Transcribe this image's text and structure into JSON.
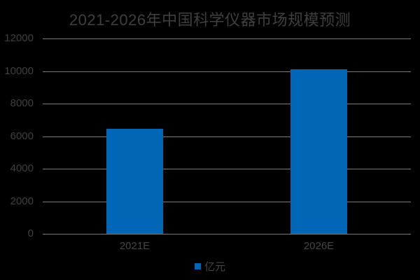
{
  "chart_data": {
    "type": "bar",
    "title": "2021-2026年中国科学仪器市场规模预测",
    "categories": [
      "2021E",
      "2026E"
    ],
    "values": [
      6450,
      10090
    ],
    "series_name": "亿元",
    "xlabel": "",
    "ylabel": "",
    "ylim": [
      0,
      12000
    ],
    "yticks": [
      0,
      2000,
      4000,
      6000,
      8000,
      10000,
      12000
    ],
    "grid": true,
    "legend_position": "bottom",
    "legend_label": "亿元"
  },
  "colors": {
    "background": "#000000",
    "bar": "#0066b5",
    "gridline": "#7a7a7a",
    "title_text": "#3f3f3f",
    "tick_text": "#454545"
  }
}
